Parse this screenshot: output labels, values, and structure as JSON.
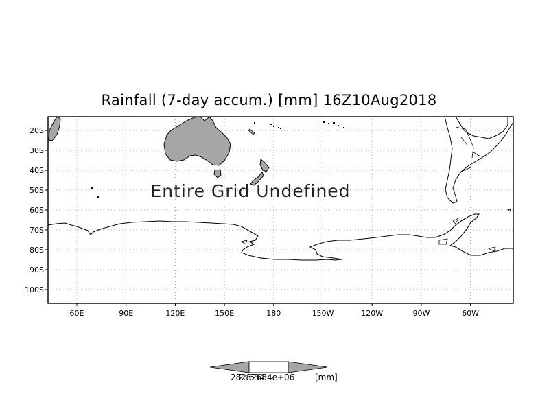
{
  "title": "Rainfall (7-day accum.) [mm] 16Z10Aug2018",
  "message": "Entire Grid Undefined",
  "lat_labels": [
    "20S",
    "30S",
    "40S",
    "50S",
    "60S",
    "70S",
    "80S",
    "90S",
    "100S"
  ],
  "lon_labels": [
    "60E",
    "90E",
    "120E",
    "150E",
    "180",
    "150W",
    "120W",
    "90W",
    "60W"
  ],
  "colorbar": {
    "low_label": "282.634",
    "high_label": "2.82634e+06",
    "unit": "[mm]",
    "colors": [
      "#a6a6a6",
      "#ffffff",
      "#a6a6a6"
    ]
  },
  "land_color": "#a6a6a6",
  "grid": true
}
